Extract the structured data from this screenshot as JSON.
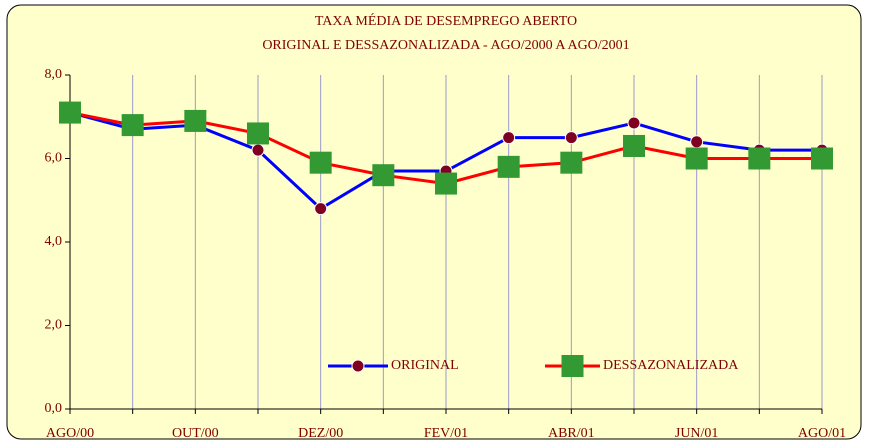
{
  "chart_data": {
    "type": "line",
    "title": "TAXA MÉDIA DE DESEMPREGO ABERTO",
    "subtitle": "ORIGINAL E DESSAZONALIZADA - AGO/2000 A AGO/2001",
    "categories": [
      "AGO/00",
      null,
      "OUT/00",
      null,
      "DEZ/00",
      null,
      "FEV/01",
      null,
      "ABR/01",
      null,
      "JUN/01",
      null,
      "AGO/01"
    ],
    "series": [
      {
        "name": "ORIGINAL",
        "color": "#0000ff",
        "marker": "circle",
        "marker_color": "#800020",
        "values": [
          7.1,
          6.7,
          6.8,
          6.2,
          4.8,
          5.7,
          5.7,
          6.5,
          6.5,
          6.85,
          6.4,
          6.2,
          6.2
        ]
      },
      {
        "name": "DESSAZONALIZADA",
        "color": "#ff0000",
        "marker": "square",
        "marker_color": "#339933",
        "values": [
          7.1,
          6.8,
          6.9,
          6.6,
          5.9,
          5.6,
          5.4,
          5.8,
          5.9,
          6.3,
          6.0,
          6.0,
          6.0
        ]
      }
    ],
    "ylim": [
      0,
      8
    ],
    "yticks": [
      {
        "value": 0,
        "label": "0,0"
      },
      {
        "value": 2,
        "label": "2,0"
      },
      {
        "value": 4,
        "label": "4,0"
      },
      {
        "value": 6,
        "label": "6,0"
      },
      {
        "value": 8,
        "label": "8,0"
      }
    ],
    "grid": "vertical"
  }
}
